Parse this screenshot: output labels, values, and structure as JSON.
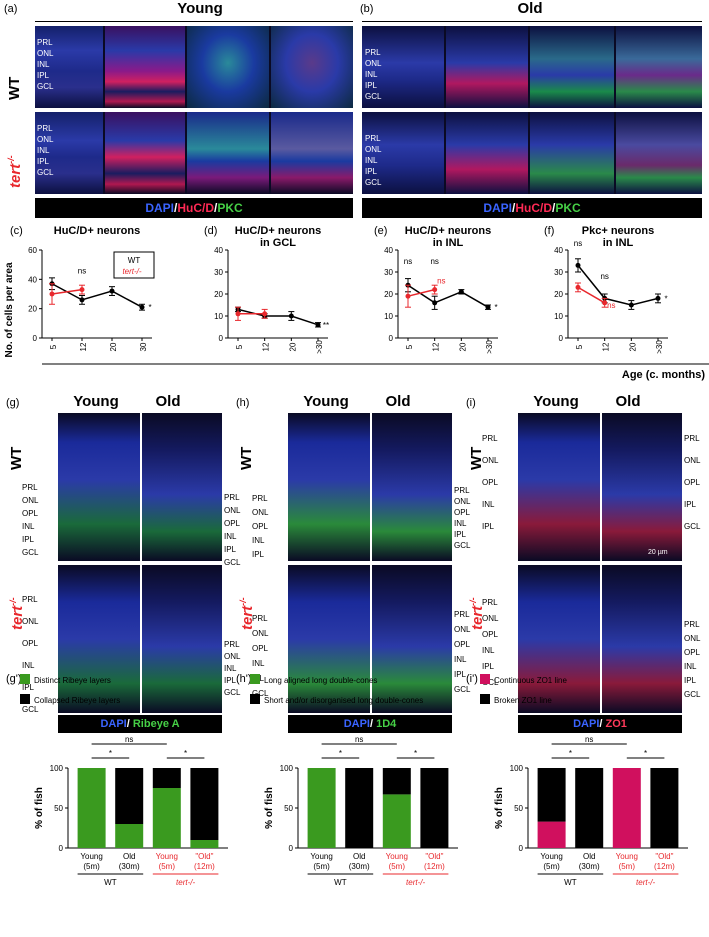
{
  "top": {
    "a_label": "(a)",
    "b_label": "(b)",
    "young": "Young",
    "old": "Old",
    "wt": "WT",
    "tert": "tert",
    "tert_sup": "-/-",
    "layers_young_wt": [
      "PRL",
      "ONL",
      "INL",
      "IPL",
      "GCL"
    ],
    "layers_young_tert": [
      "PRL",
      "ONL",
      "INL",
      "IPL",
      "GCL"
    ],
    "layers_old_wt": [
      "PRL",
      "ONL",
      "INL",
      "IPL",
      "GCL"
    ],
    "layers_old_tert": [
      "PRL",
      "ONL",
      "INL",
      "IPL",
      "GCL"
    ],
    "stain": {
      "dapi": "DAPI",
      "sep1": "/",
      "huc": "HuC/D",
      "sep2": "/",
      "pkc": "PKC"
    }
  },
  "charts_row_labels": {
    "ylabel": "No. of cells per area",
    "xlabel": "Age (c. months)",
    "legend_wt": "WT",
    "legend_tert": "tert",
    "legend_tert_sup": "-/-"
  },
  "chart_data": [
    {
      "panel": "(c)",
      "type": "line",
      "title": "HuC/D+ neurons",
      "subtitle": "",
      "categories": [
        "5",
        "12",
        "20",
        "30"
      ],
      "ylim": [
        0,
        60
      ],
      "yticks": [
        0,
        20,
        40,
        60
      ],
      "series": [
        {
          "name": "WT",
          "color": "#000000",
          "values": [
            37,
            26,
            32,
            21
          ],
          "err": [
            4,
            3,
            3,
            2
          ]
        },
        {
          "name": "tert-/-",
          "color": "#e8282d",
          "values": [
            30,
            33,
            null,
            null
          ],
          "err": [
            7,
            3,
            0,
            0
          ]
        }
      ],
      "annotations": [
        {
          "text": "ns",
          "cat": 1,
          "y": 40,
          "color": "#000000"
        },
        {
          "text": "*",
          "cat": 3,
          "y": 21,
          "color": "#000000"
        }
      ]
    },
    {
      "panel": "(d)",
      "type": "line",
      "title": "HuC/D+ neurons",
      "subtitle": "in GCL",
      "categories": [
        "5",
        "12",
        "20",
        ">30"
      ],
      "ylim": [
        0,
        40
      ],
      "yticks": [
        0,
        10,
        20,
        30,
        40
      ],
      "series": [
        {
          "name": "WT",
          "color": "#000000",
          "values": [
            13,
            10,
            10,
            6
          ],
          "err": [
            1,
            1,
            2,
            1
          ]
        },
        {
          "name": "tert-/-",
          "color": "#e8282d",
          "values": [
            11,
            11,
            null,
            null
          ],
          "err": [
            3,
            2,
            0,
            0
          ]
        }
      ],
      "annotations": [
        {
          "text": "**",
          "cat": 3,
          "y": 6,
          "color": "#000000"
        }
      ]
    },
    {
      "panel": "(e)",
      "type": "line",
      "title": "HuC/D+ neurons",
      "subtitle": "in INL",
      "categories": [
        "5",
        "12",
        "20",
        ">30"
      ],
      "ylim": [
        0,
        40
      ],
      "yticks": [
        0,
        10,
        20,
        30,
        40
      ],
      "series": [
        {
          "name": "WT",
          "color": "#000000",
          "values": [
            24,
            16,
            21,
            14
          ],
          "err": [
            3,
            3,
            1,
            1
          ]
        },
        {
          "name": "tert-/-",
          "color": "#e8282d",
          "values": [
            19,
            22,
            null,
            null
          ],
          "err": [
            5,
            2,
            0,
            0
          ]
        }
      ],
      "annotations": [
        {
          "text": "ns",
          "cat": 0,
          "y": 31,
          "color": "#000000"
        },
        {
          "text": "ns",
          "cat": 1,
          "y": 31,
          "color": "#000000"
        },
        {
          "text": "ns",
          "cat": 1.25,
          "y": 22,
          "color": "#e8282d"
        },
        {
          "text": "*",
          "cat": 3,
          "y": 14,
          "color": "#000000"
        }
      ]
    },
    {
      "panel": "(f)",
      "type": "line",
      "title": "Pkc+ neurons",
      "subtitle": "in INL",
      "categories": [
        "5",
        "12",
        "20",
        ">30"
      ],
      "ylim": [
        0,
        40
      ],
      "yticks": [
        0,
        10,
        20,
        30,
        40
      ],
      "series": [
        {
          "name": "WT",
          "color": "#000000",
          "values": [
            33,
            18,
            15,
            18
          ],
          "err": [
            3,
            2,
            2,
            2
          ]
        },
        {
          "name": "tert-/-",
          "color": "#e8282d",
          "values": [
            23,
            16,
            null,
            null
          ],
          "err": [
            2,
            2,
            0,
            0
          ]
        }
      ],
      "annotations": [
        {
          "text": "ns",
          "cat": 0,
          "y": 39,
          "color": "#000000"
        },
        {
          "text": "ns",
          "cat": 1,
          "y": 24,
          "color": "#000000"
        },
        {
          "text": "ns",
          "cat": 1.25,
          "y": 11,
          "color": "#e8282d"
        },
        {
          "text": "*",
          "cat": 3,
          "y": 18,
          "color": "#000000"
        }
      ]
    },
    {
      "panel": "(g')",
      "type": "bar",
      "legend": [
        {
          "name": "Distinct Ribeye layers",
          "color": "#3a9a1f"
        },
        {
          "name": "Collapsed Ribeye layers",
          "color": "#000000"
        }
      ],
      "categories": [
        "Young (5m)",
        "Old (30m)",
        "Young (5m)",
        "\"Old\" (12m)"
      ],
      "groups": [
        "WT",
        "tert-/-"
      ],
      "ylabel": "% of fish",
      "ylim": [
        0,
        100
      ],
      "yticks": [
        0,
        50,
        100
      ],
      "series": [
        {
          "name": "Distinct",
          "values": [
            100,
            30,
            75,
            10
          ]
        },
        {
          "name": "Collapsed",
          "values": [
            0,
            70,
            25,
            90
          ]
        }
      ],
      "comparisons": [
        {
          "text": "*",
          "from": 0,
          "to": 1
        },
        {
          "text": "ns",
          "from": 0,
          "to": 2
        },
        {
          "text": "*",
          "from": 2,
          "to": 3
        }
      ]
    },
    {
      "panel": "(h')",
      "type": "bar",
      "legend": [
        {
          "name": "Long aligned long double-cones",
          "color": "#3a9a1f"
        },
        {
          "name": "Short and/or disorganised long double-cones",
          "color": "#000000"
        }
      ],
      "categories": [
        "Young (5m)",
        "Old (30m)",
        "Young (5m)",
        "\"Old\" (12m)"
      ],
      "groups": [
        "WT",
        "tert-/-"
      ],
      "ylabel": "% of fish",
      "ylim": [
        0,
        100
      ],
      "yticks": [
        0,
        50,
        100
      ],
      "series": [
        {
          "name": "Long aligned",
          "values": [
            100,
            0,
            67,
            0
          ]
        },
        {
          "name": "Short",
          "values": [
            0,
            100,
            33,
            100
          ]
        }
      ],
      "comparisons": [
        {
          "text": "*",
          "from": 0,
          "to": 1
        },
        {
          "text": "ns",
          "from": 0,
          "to": 2
        },
        {
          "text": "*",
          "from": 2,
          "to": 3
        }
      ]
    },
    {
      "panel": "(i')",
      "type": "bar",
      "legend": [
        {
          "name": "Continuous ZO1 line",
          "color": "#d0105e"
        },
        {
          "name": "Broken ZO1 line",
          "color": "#000000"
        }
      ],
      "categories": [
        "Young (5m)",
        "Old (30m)",
        "Young (5m)",
        "\"Old\" (12m)"
      ],
      "groups": [
        "WT",
        "tert-/-"
      ],
      "ylabel": "% of fish",
      "ylim": [
        0,
        100
      ],
      "yticks": [
        0,
        50,
        100
      ],
      "series": [
        {
          "name": "Continuous",
          "values": [
            33,
            0,
            100,
            0
          ]
        },
        {
          "name": "Broken",
          "values": [
            67,
            100,
            0,
            100
          ]
        }
      ],
      "comparisons": [
        {
          "text": "*",
          "from": 0,
          "to": 1
        },
        {
          "text": "ns",
          "from": 0,
          "to": 2
        },
        {
          "text": "*",
          "from": 2,
          "to": 3
        }
      ]
    }
  ],
  "bottom_micro": {
    "g_label": "(g)",
    "h_label": "(h)",
    "i_label": "(i)",
    "young": "Young",
    "old": "Old",
    "wt": "WT",
    "tert": "tert",
    "tert_sup": "-/-",
    "g_wt_young": [
      "PRL",
      "ONL",
      "OPL",
      "INL",
      "IPL",
      "GCL"
    ],
    "g_wt_old": [
      "PRL",
      "ONL",
      "OPL",
      "INL",
      "IPL",
      "GCL"
    ],
    "g_tert_young": [
      "PRL",
      "ONL",
      "OPL",
      "INL",
      "IPL",
      "GCL"
    ],
    "g_tert_old": [
      "PRL",
      "ONL",
      "INL",
      "IPL",
      "GCL"
    ],
    "h_wt_young": [
      "PRL",
      "ONL",
      "OPL",
      "INL",
      "IPL"
    ],
    "h_wt_old": [
      "PRL",
      "ONL",
      "OPL",
      "INL",
      "IPL",
      "GCL"
    ],
    "h_tert_young": [
      "PRL",
      "ONL",
      "OPL",
      "INL",
      "IPL",
      "GCL"
    ],
    "h_tert_old": [
      "PRL",
      "ONL",
      "OPL",
      "INL",
      "IPL",
      "GCL"
    ],
    "i_wt_young": [
      "PRL",
      "ONL",
      "OPL",
      "INL",
      "IPL"
    ],
    "i_wt_old": [
      "PRL",
      "ONL",
      "OPL",
      "IPL",
      "GCL"
    ],
    "i_tert_young": [
      "PRL",
      "ONL",
      "OPL",
      "INL",
      "IPL",
      "GCL"
    ],
    "i_tert_old": [
      "PRL",
      "ONL",
      "OPL",
      "INL",
      "IPL",
      "GCL"
    ],
    "scale_i": "20 µm",
    "stain_g": {
      "dapi": "DAPI",
      "sep": "/ ",
      "marker": "Ribeye A"
    },
    "stain_h": {
      "dapi": "DAPI",
      "sep": "/ ",
      "marker": "1D4"
    },
    "stain_i": {
      "dapi": "DAPI",
      "sep": "/ ",
      "marker": "ZO1"
    }
  }
}
